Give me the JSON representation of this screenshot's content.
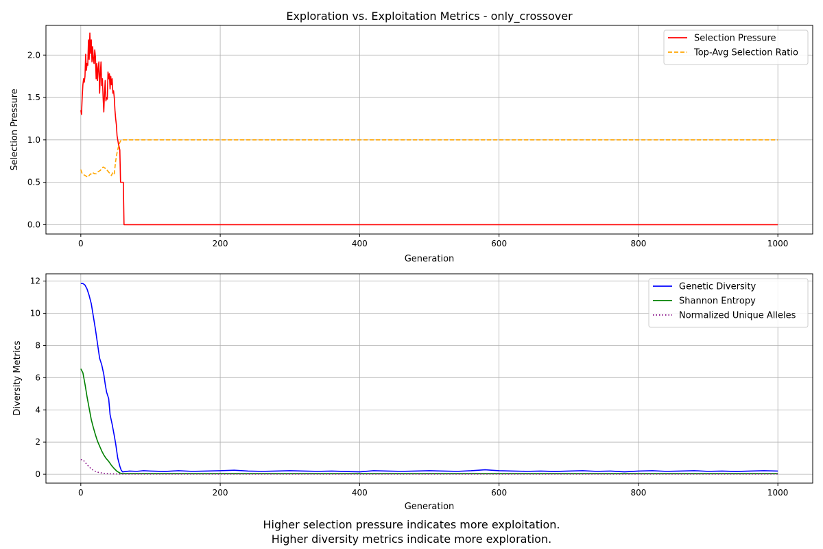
{
  "chart_data": [
    {
      "type": "line",
      "title": "Exploration vs. Exploitation Metrics - only_crossover",
      "xlabel": "Generation",
      "ylabel": "Selection Pressure",
      "xlim": [
        -50,
        1050
      ],
      "ylim": [
        -0.11,
        2.35
      ],
      "x_ticks": [
        0,
        200,
        400,
        600,
        800,
        1000
      ],
      "y_ticks": [
        0.0,
        0.5,
        1.0,
        1.5,
        2.0
      ],
      "y_tick_labels": [
        "0.0",
        "0.5",
        "1.0",
        "1.5",
        "2.0"
      ],
      "grid": true,
      "legend_position": "top-right",
      "series": [
        {
          "name": "Selection Pressure",
          "color": "#ff0000",
          "style": "solid",
          "points": [
            [
              0,
              1.35
            ],
            [
              1,
              1.3
            ],
            [
              2,
              1.5
            ],
            [
              3,
              1.65
            ],
            [
              4,
              1.72
            ],
            [
              5,
              1.68
            ],
            [
              6,
              1.75
            ],
            [
              7,
              2.01
            ],
            [
              8,
              1.82
            ],
            [
              9,
              1.9
            ],
            [
              10,
              1.88
            ],
            [
              11,
              2.18
            ],
            [
              12,
              1.95
            ],
            [
              13,
              2.26
            ],
            [
              14,
              2.02
            ],
            [
              15,
              2.18
            ],
            [
              16,
              1.92
            ],
            [
              17,
              2.1
            ],
            [
              18,
              1.95
            ],
            [
              19,
              1.9
            ],
            [
              20,
              2.06
            ],
            [
              21,
              1.98
            ],
            [
              22,
              1.72
            ],
            [
              23,
              1.9
            ],
            [
              24,
              1.7
            ],
            [
              25,
              1.85
            ],
            [
              26,
              1.92
            ],
            [
              27,
              1.55
            ],
            [
              28,
              1.78
            ],
            [
              29,
              1.92
            ],
            [
              30,
              1.64
            ],
            [
              31,
              1.72
            ],
            [
              32,
              1.5
            ],
            [
              33,
              1.33
            ],
            [
              34,
              1.55
            ],
            [
              35,
              1.7
            ],
            [
              36,
              1.46
            ],
            [
              37,
              1.5
            ],
            [
              38,
              1.48
            ],
            [
              39,
              1.8
            ],
            [
              40,
              1.72
            ],
            [
              41,
              1.78
            ],
            [
              42,
              1.6
            ],
            [
              43,
              1.75
            ],
            [
              44,
              1.65
            ],
            [
              45,
              1.72
            ],
            [
              46,
              1.55
            ],
            [
              47,
              1.58
            ],
            [
              48,
              1.5
            ],
            [
              49,
              1.35
            ],
            [
              50,
              1.25
            ],
            [
              51,
              1.18
            ],
            [
              52,
              1.05
            ],
            [
              53,
              1.0
            ],
            [
              54,
              0.95
            ],
            [
              55,
              0.92
            ],
            [
              56,
              0.88
            ],
            [
              57,
              0.5
            ],
            [
              58,
              0.5
            ],
            [
              59,
              0.5
            ],
            [
              60,
              0.5
            ],
            [
              61,
              0.5
            ],
            [
              62,
              0.0
            ],
            [
              100,
              0.0
            ],
            [
              200,
              0.0
            ],
            [
              300,
              0.0
            ],
            [
              400,
              0.0
            ],
            [
              500,
              0.0
            ],
            [
              600,
              0.0
            ],
            [
              700,
              0.0
            ],
            [
              800,
              0.0
            ],
            [
              900,
              0.0
            ],
            [
              1000,
              0.0
            ]
          ]
        },
        {
          "name": "Top-Avg Selection Ratio",
          "color": "#ffa500",
          "style": "dashed",
          "points": [
            [
              0,
              0.65
            ],
            [
              2,
              0.6
            ],
            [
              4,
              0.59
            ],
            [
              6,
              0.58
            ],
            [
              8,
              0.57
            ],
            [
              10,
              0.56
            ],
            [
              12,
              0.58
            ],
            [
              14,
              0.6
            ],
            [
              16,
              0.59
            ],
            [
              18,
              0.61
            ],
            [
              20,
              0.6
            ],
            [
              22,
              0.6
            ],
            [
              24,
              0.62
            ],
            [
              26,
              0.63
            ],
            [
              28,
              0.64
            ],
            [
              30,
              0.66
            ],
            [
              32,
              0.68
            ],
            [
              34,
              0.67
            ],
            [
              36,
              0.66
            ],
            [
              38,
              0.64
            ],
            [
              40,
              0.62
            ],
            [
              42,
              0.6
            ],
            [
              44,
              0.58
            ],
            [
              46,
              0.62
            ],
            [
              48,
              0.6
            ],
            [
              50,
              0.75
            ],
            [
              52,
              0.85
            ],
            [
              54,
              0.92
            ],
            [
              56,
              0.97
            ],
            [
              58,
              1.0
            ],
            [
              60,
              1.0
            ],
            [
              100,
              1.0
            ],
            [
              200,
              1.0
            ],
            [
              300,
              1.0
            ],
            [
              400,
              1.0
            ],
            [
              500,
              1.0
            ],
            [
              600,
              1.0
            ],
            [
              700,
              1.0
            ],
            [
              800,
              1.0
            ],
            [
              900,
              1.0
            ],
            [
              1000,
              1.0
            ]
          ]
        }
      ]
    },
    {
      "type": "line",
      "title": "",
      "xlabel": "Generation",
      "ylabel": "Diversity Metrics",
      "xlim": [
        -50,
        1050
      ],
      "ylim": [
        -0.55,
        12.45
      ],
      "x_ticks": [
        0,
        200,
        400,
        600,
        800,
        1000
      ],
      "y_ticks": [
        0,
        2,
        4,
        6,
        8,
        10,
        12
      ],
      "y_tick_labels": [
        "0",
        "2",
        "4",
        "6",
        "8",
        "10",
        "12"
      ],
      "grid": true,
      "legend_position": "top-right",
      "series": [
        {
          "name": "Genetic Diversity",
          "color": "#0000ff",
          "style": "solid",
          "points": [
            [
              0,
              11.85
            ],
            [
              3,
              11.85
            ],
            [
              6,
              11.75
            ],
            [
              9,
              11.5
            ],
            [
              12,
              11.1
            ],
            [
              15,
              10.6
            ],
            [
              18,
              9.8
            ],
            [
              21,
              9.0
            ],
            [
              24,
              8.1
            ],
            [
              27,
              7.2
            ],
            [
              30,
              6.8
            ],
            [
              33,
              6.2
            ],
            [
              35,
              5.6
            ],
            [
              37,
              5.1
            ],
            [
              40,
              4.7
            ],
            [
              42,
              3.7
            ],
            [
              45,
              3.1
            ],
            [
              48,
              2.4
            ],
            [
              50,
              1.9
            ],
            [
              53,
              1.0
            ],
            [
              56,
              0.5
            ],
            [
              58,
              0.25
            ],
            [
              60,
              0.15
            ],
            [
              70,
              0.2
            ],
            [
              80,
              0.18
            ],
            [
              90,
              0.22
            ],
            [
              100,
              0.2
            ],
            [
              120,
              0.17
            ],
            [
              140,
              0.22
            ],
            [
              160,
              0.18
            ],
            [
              180,
              0.2
            ],
            [
              200,
              0.22
            ],
            [
              220,
              0.25
            ],
            [
              240,
              0.2
            ],
            [
              260,
              0.18
            ],
            [
              280,
              0.2
            ],
            [
              300,
              0.22
            ],
            [
              320,
              0.2
            ],
            [
              340,
              0.18
            ],
            [
              360,
              0.2
            ],
            [
              380,
              0.17
            ],
            [
              400,
              0.15
            ],
            [
              420,
              0.22
            ],
            [
              440,
              0.2
            ],
            [
              460,
              0.18
            ],
            [
              480,
              0.2
            ],
            [
              500,
              0.22
            ],
            [
              520,
              0.2
            ],
            [
              540,
              0.18
            ],
            [
              560,
              0.22
            ],
            [
              580,
              0.28
            ],
            [
              600,
              0.22
            ],
            [
              620,
              0.2
            ],
            [
              640,
              0.18
            ],
            [
              660,
              0.2
            ],
            [
              680,
              0.17
            ],
            [
              700,
              0.2
            ],
            [
              720,
              0.22
            ],
            [
              740,
              0.18
            ],
            [
              760,
              0.2
            ],
            [
              780,
              0.15
            ],
            [
              800,
              0.2
            ],
            [
              820,
              0.22
            ],
            [
              840,
              0.18
            ],
            [
              860,
              0.2
            ],
            [
              880,
              0.22
            ],
            [
              900,
              0.18
            ],
            [
              920,
              0.2
            ],
            [
              940,
              0.17
            ],
            [
              960,
              0.2
            ],
            [
              980,
              0.22
            ],
            [
              1000,
              0.2
            ]
          ]
        },
        {
          "name": "Shannon Entropy",
          "color": "#008000",
          "style": "solid",
          "points": [
            [
              0,
              6.55
            ],
            [
              3,
              6.3
            ],
            [
              6,
              5.6
            ],
            [
              9,
              4.8
            ],
            [
              12,
              4.1
            ],
            [
              15,
              3.4
            ],
            [
              18,
              2.9
            ],
            [
              21,
              2.45
            ],
            [
              24,
              2.05
            ],
            [
              27,
              1.75
            ],
            [
              30,
              1.45
            ],
            [
              33,
              1.2
            ],
            [
              36,
              1.0
            ],
            [
              40,
              0.8
            ],
            [
              44,
              0.55
            ],
            [
              48,
              0.35
            ],
            [
              52,
              0.18
            ],
            [
              56,
              0.08
            ],
            [
              60,
              0.04
            ],
            [
              100,
              0.04
            ],
            [
              200,
              0.04
            ],
            [
              300,
              0.04
            ],
            [
              400,
              0.04
            ],
            [
              500,
              0.04
            ],
            [
              600,
              0.04
            ],
            [
              700,
              0.04
            ],
            [
              800,
              0.04
            ],
            [
              900,
              0.04
            ],
            [
              1000,
              0.04
            ]
          ]
        },
        {
          "name": "Normalized Unique Alleles",
          "color": "#800080",
          "style": "dotted",
          "points": [
            [
              0,
              0.92
            ],
            [
              4,
              0.85
            ],
            [
              8,
              0.65
            ],
            [
              12,
              0.45
            ],
            [
              16,
              0.3
            ],
            [
              20,
              0.2
            ],
            [
              25,
              0.12
            ],
            [
              30,
              0.08
            ],
            [
              35,
              0.05
            ],
            [
              40,
              0.03
            ],
            [
              50,
              0.02
            ],
            [
              60,
              0.01
            ],
            [
              100,
              0.01
            ],
            [
              200,
              0.01
            ],
            [
              300,
              0.01
            ],
            [
              400,
              0.01
            ],
            [
              500,
              0.01
            ],
            [
              600,
              0.01
            ],
            [
              700,
              0.01
            ],
            [
              800,
              0.01
            ],
            [
              900,
              0.01
            ],
            [
              1000,
              0.01
            ]
          ]
        }
      ]
    }
  ],
  "caption": {
    "line1": "Higher selection pressure indicates more exploitation.",
    "line2": "Higher diversity metrics indicate more exploration."
  }
}
